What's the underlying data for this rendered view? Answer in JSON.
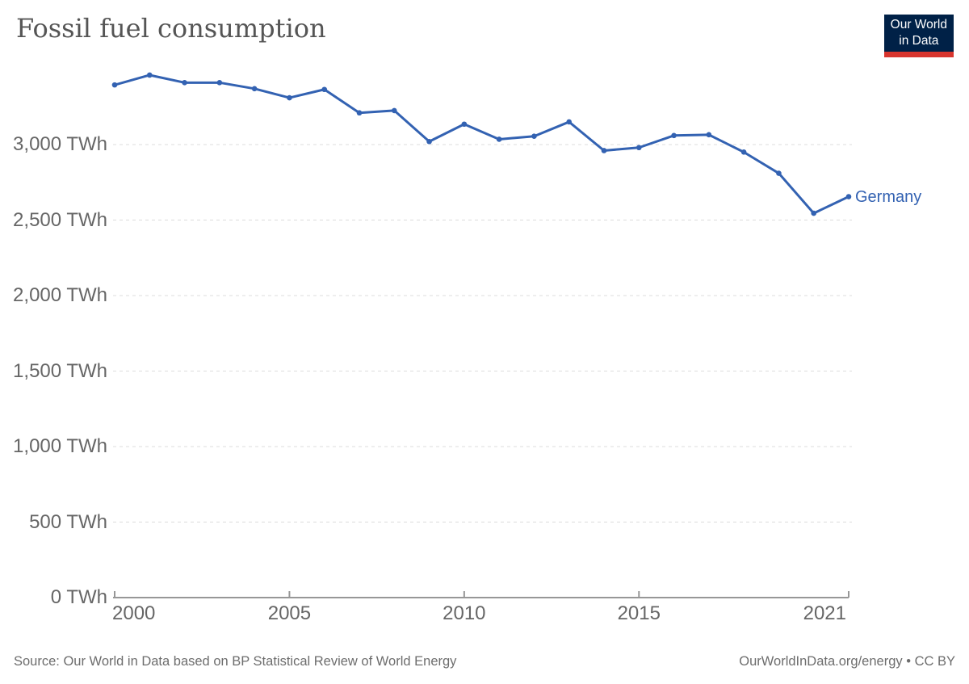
{
  "header": {
    "title": "Fossil fuel consumption",
    "logo": {
      "line1": "Our World",
      "line2": "in Data",
      "bg_color": "#002147",
      "bar_color": "#d8352e",
      "text_color": "#ffffff"
    }
  },
  "chart_data": {
    "type": "line",
    "title": "Fossil fuel consumption",
    "unit": "TWh",
    "xlim": [
      2000,
      2021
    ],
    "ylim": [
      0,
      3550
    ],
    "grid": "horizontal-dashed",
    "legend_position": "end-of-line",
    "series": [
      {
        "name": "Germany",
        "color": "#3362b2",
        "x": [
          2000,
          2001,
          2002,
          2003,
          2004,
          2005,
          2006,
          2007,
          2008,
          2009,
          2010,
          2011,
          2012,
          2013,
          2014,
          2015,
          2016,
          2017,
          2018,
          2019,
          2020,
          2021
        ],
        "values": [
          3395,
          3460,
          3410,
          3410,
          3370,
          3310,
          3365,
          3210,
          3225,
          3020,
          3135,
          3035,
          3055,
          3150,
          2960,
          2980,
          3060,
          3065,
          2950,
          2810,
          2545,
          2655
        ]
      }
    ],
    "y_ticks": [
      {
        "value": 0,
        "label": "0 TWh"
      },
      {
        "value": 500,
        "label": "500 TWh"
      },
      {
        "value": 1000,
        "label": "1,000 TWh"
      },
      {
        "value": 1500,
        "label": "1,500 TWh"
      },
      {
        "value": 2000,
        "label": "2,000 TWh"
      },
      {
        "value": 2500,
        "label": "2,500 TWh"
      },
      {
        "value": 3000,
        "label": "3,000 TWh"
      }
    ],
    "x_ticks": [
      {
        "value": 2000,
        "label": "2000"
      },
      {
        "value": 2005,
        "label": "2005"
      },
      {
        "value": 2010,
        "label": "2010"
      },
      {
        "value": 2015,
        "label": "2015"
      },
      {
        "value": 2021,
        "label": "2021"
      }
    ]
  },
  "footer": {
    "source": "Source: Our World in Data based on BP Statistical Review of World Energy",
    "license": "OurWorldInData.org/energy • CC BY"
  }
}
